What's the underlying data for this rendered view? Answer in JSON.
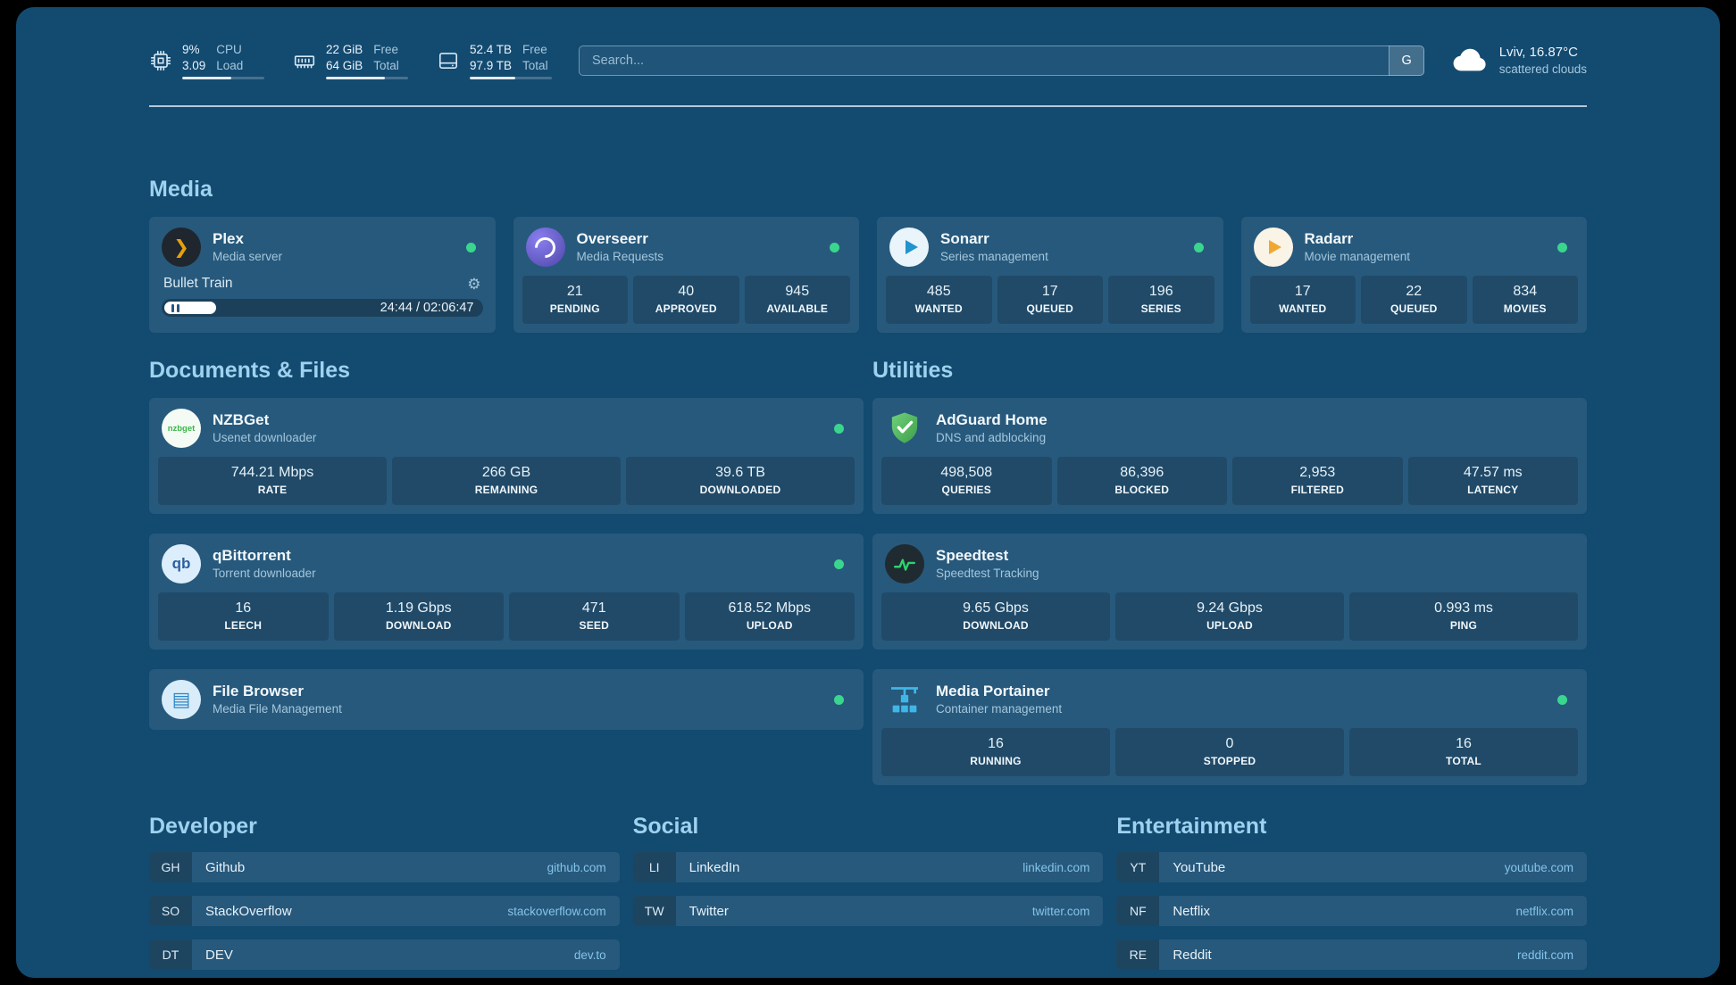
{
  "colors": {
    "background": "#134a70",
    "heading": "#9ed2ef",
    "text": "#eaf3fa",
    "muted": "#a6c8dd",
    "online": "#3ad68e",
    "domain_link": "#85c3ea",
    "plex_accent": "#e5a00d",
    "sonarr_accent": "#2193cf",
    "radarr_accent": "#f0a732",
    "speedtest_green": "#2dd36f",
    "portainer_blue": "#3fb6e8"
  },
  "topbar": {
    "resources": [
      {
        "icon": "cpu-icon",
        "value_top": "9%",
        "value_bottom": "3.09",
        "label_top": "CPU",
        "label_bottom": "Load",
        "progress_pct": 60
      },
      {
        "icon": "memory-icon",
        "value_top": "22 GiB",
        "value_bottom": "64 GiB",
        "label_top": "Free",
        "label_bottom": "Total",
        "progress_pct": 72
      },
      {
        "icon": "disk-icon",
        "value_top": "52.4 TB",
        "value_bottom": "97.9 TB",
        "label_top": "Free",
        "label_bottom": "Total",
        "progress_pct": 55
      }
    ],
    "search": {
      "placeholder": "Search...",
      "button_label": "G"
    },
    "weather": {
      "icon": "cloud-icon",
      "location": "Lviv, 16.87°C",
      "condition": "scattered clouds"
    }
  },
  "sections": {
    "media": {
      "title": "Media",
      "services": [
        {
          "name": "Plex",
          "subtitle": "Media server",
          "icon": "plex-icon",
          "online": true,
          "now_playing": {
            "title": "Bullet Train",
            "time": "24:44 / 02:06:47"
          }
        },
        {
          "name": "Overseerr",
          "subtitle": "Media Requests",
          "icon": "overseerr-icon",
          "online": true,
          "stats": [
            {
              "value": "21",
              "label": "PENDING"
            },
            {
              "value": "40",
              "label": "APPROVED"
            },
            {
              "value": "945",
              "label": "AVAILABLE"
            }
          ]
        },
        {
          "name": "Sonarr",
          "subtitle": "Series management",
          "icon": "sonarr-icon",
          "online": true,
          "stats": [
            {
              "value": "485",
              "label": "WANTED"
            },
            {
              "value": "17",
              "label": "QUEUED"
            },
            {
              "value": "196",
              "label": "SERIES"
            }
          ]
        },
        {
          "name": "Radarr",
          "subtitle": "Movie management",
          "icon": "radarr-icon",
          "online": true,
          "stats": [
            {
              "value": "17",
              "label": "WANTED"
            },
            {
              "value": "22",
              "label": "QUEUED"
            },
            {
              "value": "834",
              "label": "MOVIES"
            }
          ]
        }
      ]
    },
    "documents": {
      "title": "Documents & Files",
      "services": [
        {
          "name": "NZBGet",
          "subtitle": "Usenet downloader",
          "icon": "nzbget-icon",
          "online": true,
          "stats": [
            {
              "value": "744.21 Mbps",
              "label": "RATE"
            },
            {
              "value": "266 GB",
              "label": "REMAINING"
            },
            {
              "value": "39.6 TB",
              "label": "DOWNLOADED"
            }
          ]
        },
        {
          "name": "qBittorrent",
          "subtitle": "Torrent downloader",
          "icon": "qbittorrent-icon",
          "online": true,
          "stats": [
            {
              "value": "16",
              "label": "LEECH"
            },
            {
              "value": "1.19 Gbps",
              "label": "DOWNLOAD"
            },
            {
              "value": "471",
              "label": "SEED"
            },
            {
              "value": "618.52 Mbps",
              "label": "UPLOAD"
            }
          ]
        },
        {
          "name": "File Browser",
          "subtitle": "Media File Management",
          "icon": "filebrowser-icon",
          "online": true
        }
      ]
    },
    "utilities": {
      "title": "Utilities",
      "services": [
        {
          "name": "AdGuard Home",
          "subtitle": "DNS and adblocking",
          "icon": "adguard-icon",
          "online": false,
          "stats": [
            {
              "value": "498,508",
              "label": "QUERIES"
            },
            {
              "value": "86,396",
              "label": "BLOCKED"
            },
            {
              "value": "2,953",
              "label": "FILTERED"
            },
            {
              "value": "47.57 ms",
              "label": "LATENCY"
            }
          ]
        },
        {
          "name": "Speedtest",
          "subtitle": "Speedtest Tracking",
          "icon": "speedtest-icon",
          "online": false,
          "stats": [
            {
              "value": "9.65 Gbps",
              "label": "DOWNLOAD"
            },
            {
              "value": "9.24 Gbps",
              "label": "UPLOAD"
            },
            {
              "value": "0.993 ms",
              "label": "PING"
            }
          ]
        },
        {
          "name": "Media Portainer",
          "subtitle": "Container management",
          "icon": "portainer-icon",
          "online": true,
          "stats": [
            {
              "value": "16",
              "label": "RUNNING"
            },
            {
              "value": "0",
              "label": "STOPPED"
            },
            {
              "value": "16",
              "label": "TOTAL"
            }
          ]
        }
      ]
    }
  },
  "bookmarks": [
    {
      "title": "Developer",
      "items": [
        {
          "abbr": "GH",
          "name": "Github",
          "domain": "github.com"
        },
        {
          "abbr": "SO",
          "name": "StackOverflow",
          "domain": "stackoverflow.com"
        },
        {
          "abbr": "DT",
          "name": "DEV",
          "domain": "dev.to"
        }
      ]
    },
    {
      "title": "Social",
      "items": [
        {
          "abbr": "LI",
          "name": "LinkedIn",
          "domain": "linkedin.com"
        },
        {
          "abbr": "TW",
          "name": "Twitter",
          "domain": "twitter.com"
        }
      ]
    },
    {
      "title": "Entertainment",
      "items": [
        {
          "abbr": "YT",
          "name": "YouTube",
          "domain": "youtube.com"
        },
        {
          "abbr": "NF",
          "name": "Netflix",
          "domain": "netflix.com"
        },
        {
          "abbr": "RE",
          "name": "Reddit",
          "domain": "reddit.com"
        }
      ]
    }
  ]
}
